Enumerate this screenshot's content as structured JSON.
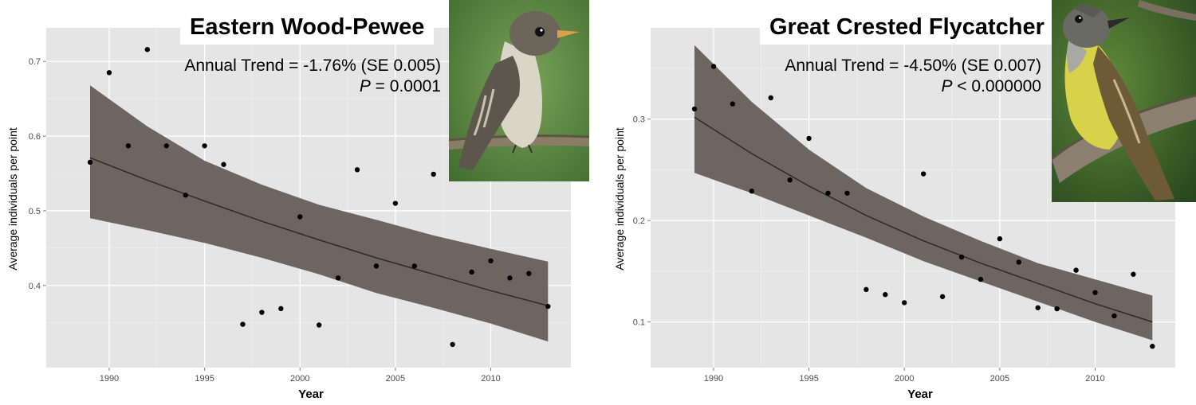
{
  "chart_data": [
    {
      "type": "scatter",
      "title": "Eastern Wood-Pewee",
      "annotation": {
        "trend": "Annual Trend = -1.76% (SE 0.005)",
        "p_label": "P",
        "p_value": " = 0.0001"
      },
      "xlabel": "Year",
      "ylabel": "Average individuals per point",
      "xlim": [
        1986.7,
        2014.2
      ],
      "ylim": [
        0.29,
        0.745
      ],
      "xticks": [
        1990,
        1995,
        2000,
        2005,
        2010
      ],
      "yticks": [
        0.4,
        0.5,
        0.6,
        0.7
      ],
      "grid": true,
      "x": [
        1989,
        1990,
        1991,
        1992,
        1993,
        1994,
        1995,
        1996,
        1997,
        1998,
        1999,
        2000,
        2001,
        2002,
        2003,
        2004,
        2005,
        2006,
        2007,
        2008,
        2009,
        2010,
        2011,
        2012,
        2013
      ],
      "y": [
        0.565,
        0.685,
        0.587,
        0.716,
        0.587,
        0.521,
        0.587,
        0.562,
        0.348,
        0.364,
        0.369,
        0.492,
        0.347,
        0.41,
        0.555,
        0.426,
        0.51,
        0.426,
        0.549,
        0.321,
        0.418,
        0.433,
        0.41,
        0.416,
        0.372
      ],
      "trend_fit": {
        "x": [
          1989,
          1992,
          1995,
          1998,
          2001,
          2004,
          2007,
          2010,
          2013
        ],
        "y": [
          0.571,
          0.541,
          0.513,
          0.486,
          0.461,
          0.437,
          0.415,
          0.393,
          0.373
        ],
        "lower": [
          0.49,
          0.474,
          0.457,
          0.437,
          0.415,
          0.39,
          0.37,
          0.349,
          0.325
        ],
        "upper": [
          0.668,
          0.613,
          0.567,
          0.535,
          0.508,
          0.488,
          0.467,
          0.449,
          0.432
        ]
      }
    },
    {
      "type": "scatter",
      "title": "Great Crested Flycatcher",
      "annotation": {
        "trend": "Annual Trend = -4.50% (SE 0.007)",
        "p_label": "P",
        "p_value": " < 0.000000"
      },
      "xlabel": "Year",
      "ylabel": "Average individuals per point",
      "xlim": [
        1986.7,
        2014.2
      ],
      "ylim": [
        0.055,
        0.39
      ],
      "xticks": [
        1990,
        1995,
        2000,
        2005,
        2010
      ],
      "yticks": [
        0.1,
        0.2,
        0.3
      ],
      "grid": true,
      "x": [
        1989,
        1990,
        1991,
        1992,
        1993,
        1994,
        1995,
        1996,
        1997,
        1998,
        1999,
        2000,
        2001,
        2002,
        2003,
        2004,
        2005,
        2006,
        2007,
        2008,
        2009,
        2010,
        2011,
        2012,
        2013
      ],
      "y": [
        0.31,
        0.352,
        0.315,
        0.229,
        0.321,
        0.24,
        0.281,
        0.227,
        0.227,
        0.132,
        0.127,
        0.119,
        0.246,
        0.125,
        0.164,
        0.142,
        0.182,
        0.159,
        0.114,
        0.113,
        0.151,
        0.129,
        0.106,
        0.147,
        0.076
      ],
      "trend_fit": {
        "x": [
          1989,
          1992,
          1995,
          1998,
          2001,
          2004,
          2007,
          2010,
          2013
        ],
        "y": [
          0.302,
          0.266,
          0.234,
          0.205,
          0.18,
          0.158,
          0.138,
          0.118,
          0.1
        ],
        "lower": [
          0.247,
          0.227,
          0.205,
          0.183,
          0.16,
          0.14,
          0.12,
          0.1,
          0.082
        ],
        "upper": [
          0.373,
          0.317,
          0.27,
          0.232,
          0.204,
          0.18,
          0.158,
          0.142,
          0.126
        ]
      }
    }
  ]
}
